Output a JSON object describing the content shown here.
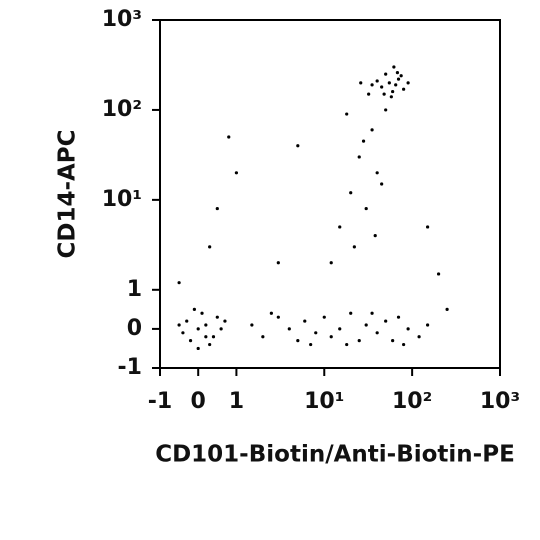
{
  "chart_data": {
    "type": "scatter",
    "xlabel": "CD101-Biotin/Anti-Biotin-PE",
    "ylabel": "CD14-APC",
    "xscale": "biexponential",
    "yscale": "biexponential",
    "color": "#000000",
    "xlim": [
      -1,
      1000
    ],
    "ylim": [
      -1,
      1000
    ],
    "xticks": [
      -1,
      0,
      1,
      {
        "value": 10,
        "label": "10¹"
      },
      {
        "value": 100,
        "label": "10²"
      },
      {
        "value": 1000,
        "label": "10³"
      }
    ],
    "yticks": [
      -1,
      0,
      1,
      {
        "value": 10,
        "label": "10¹"
      },
      {
        "value": 100,
        "label": "10²"
      },
      {
        "value": 1000,
        "label": "10³"
      }
    ],
    "x": [
      0,
      0.2,
      -0.3,
      0.4,
      -0.2,
      0.1,
      0.5,
      -0.4,
      0.3,
      0,
      -0.1,
      0.6,
      0.2,
      -0.5,
      0.7,
      1.5,
      2,
      3,
      4,
      5,
      6,
      8,
      10,
      12,
      15,
      20,
      25,
      30,
      40,
      50,
      60,
      70,
      90,
      120,
      150,
      2.5,
      7,
      18,
      35,
      80,
      45,
      55,
      60,
      70,
      50,
      65,
      80,
      40,
      75,
      58,
      48,
      90,
      62,
      35,
      68,
      15,
      20,
      25,
      30,
      35,
      40,
      22,
      28,
      18,
      45,
      50,
      12,
      32,
      38,
      26,
      0.5,
      0.3,
      3,
      1,
      0.8,
      150,
      200,
      250,
      -0.5,
      5
    ],
    "y": [
      0,
      0.1,
      0.2,
      -0.2,
      -0.3,
      0.4,
      0.3,
      -0.1,
      -0.4,
      -0.5,
      0.5,
      0,
      -0.2,
      0.1,
      0.2,
      0.1,
      -0.2,
      0.3,
      0,
      -0.3,
      0.2,
      -0.1,
      0.3,
      -0.2,
      0,
      0.4,
      -0.3,
      0.1,
      -0.1,
      0.2,
      -0.3,
      0.3,
      0,
      -0.2,
      0.1,
      0.4,
      -0.4,
      -0.4,
      0.4,
      -0.4,
      180,
      200,
      160,
      220,
      250,
      190,
      170,
      210,
      240,
      140,
      150,
      200,
      300,
      190,
      260,
      5,
      12,
      30,
      8,
      60,
      20,
      3,
      45,
      90,
      15,
      100,
      2,
      150,
      4,
      200,
      8,
      3,
      2,
      20,
      50,
      5,
      1.5,
      0.5,
      1.2,
      40
    ]
  }
}
